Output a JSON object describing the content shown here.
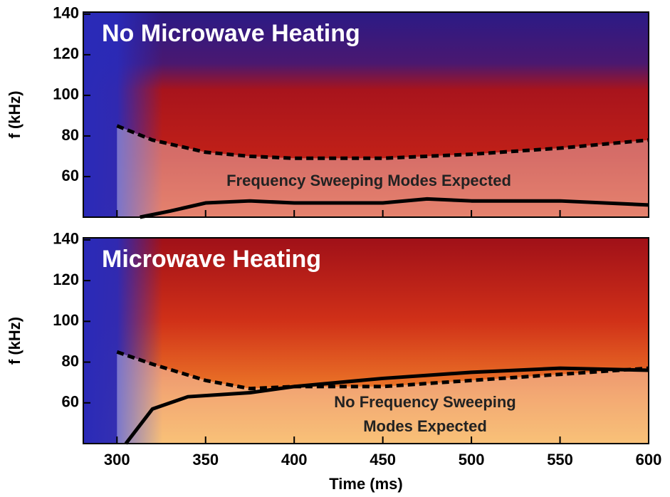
{
  "chart_data": [
    {
      "type": "spectrogram",
      "title": "No Microwave Heating",
      "ylabel": "f (kHz)",
      "annotation": [
        "Frequency Sweeping Modes Expected"
      ],
      "xlim": [
        281,
        600
      ],
      "ylim": [
        40,
        141
      ],
      "yticks": [
        60,
        80,
        100,
        120,
        140
      ],
      "series": [
        {
          "line_style": "dashed",
          "color": "#000000",
          "x": [
            300,
            320,
            350,
            375,
            400,
            450,
            500,
            550,
            600
          ],
          "values": [
            85,
            78,
            72,
            70,
            69,
            69,
            71,
            74,
            78
          ]
        },
        {
          "line_style": "solid",
          "color": "#000000",
          "x": [
            313,
            330,
            350,
            375,
            400,
            450,
            475,
            500,
            550,
            600
          ],
          "values": [
            40,
            43,
            47,
            48,
            47,
            47,
            49,
            48,
            48,
            46
          ]
        }
      ]
    },
    {
      "type": "spectrogram",
      "title": "Microwave Heating",
      "ylabel": "f (kHz)",
      "xlabel": "Time (ms)",
      "annotation": [
        "No Frequency Sweeping",
        "Modes Expected"
      ],
      "xlim": [
        281,
        600
      ],
      "ylim": [
        40,
        141
      ],
      "xticks": [
        300,
        350,
        400,
        450,
        500,
        550,
        600
      ],
      "yticks": [
        60,
        80,
        100,
        120,
        140
      ],
      "series": [
        {
          "line_style": "dashed",
          "color": "#000000",
          "x": [
            300,
            320,
            350,
            375,
            400,
            450,
            500,
            550,
            600
          ],
          "values": [
            85,
            79,
            71,
            67,
            68,
            68,
            71,
            74,
            77
          ]
        },
        {
          "line_style": "solid",
          "color": "#000000",
          "x": [
            305,
            320,
            340,
            375,
            400,
            450,
            500,
            550,
            600
          ],
          "values": [
            40,
            57,
            63,
            65,
            68,
            72,
            75,
            77,
            76
          ]
        }
      ]
    }
  ]
}
